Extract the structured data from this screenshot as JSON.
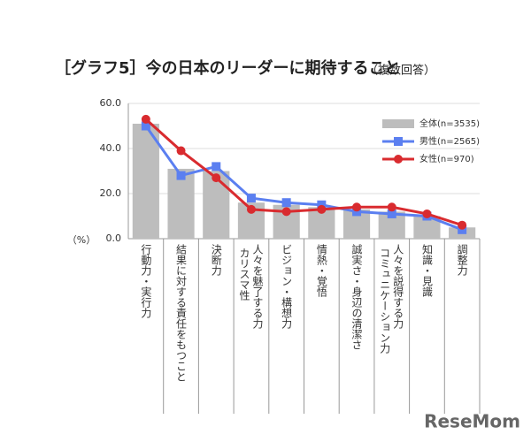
{
  "chart_data": {
    "type": "bar-line",
    "title": "［グラフ5］今の日本のリーダーに期待すること",
    "subtitle": "（複数回答）",
    "y_label": "（%）",
    "watermark": "ReseMom",
    "categories": [
      "行動力・実行力",
      "結果に対する責任をもつこと",
      "決断力",
      "人々を魅了する力 カリスマ性",
      "ビジョン・構想力",
      "情熱・覚悟",
      "誠実さ・身辺の清潔さ",
      "人々を説得する力 コミュニケーション力",
      "知識・見識",
      "調整力"
    ],
    "series": [
      {
        "name": "全体(n=3535)",
        "color": "#bdbdbd",
        "kind": "bar",
        "values": [
          51,
          31,
          30,
          16,
          15,
          14,
          13,
          12,
          10,
          5
        ]
      },
      {
        "name": "男性(n=2565)",
        "color": "#5b7ff0",
        "kind": "line",
        "marker": "square",
        "values": [
          50,
          28,
          32,
          18,
          16,
          15,
          12,
          11,
          10,
          4
        ]
      },
      {
        "name": "女性(n=970)",
        "color": "#d92b2f",
        "kind": "line",
        "marker": "circle",
        "values": [
          53,
          39,
          27,
          13,
          12,
          13,
          14,
          14,
          11,
          6
        ]
      }
    ],
    "ylim": [
      0,
      60
    ],
    "yticks": [
      {
        "value": 0,
        "label": "0.0"
      },
      {
        "value": 20,
        "label": "20.0"
      },
      {
        "value": 40,
        "label": "40.0"
      },
      {
        "value": 60,
        "label": "60.0"
      }
    ],
    "grid": true,
    "legend": "top-right"
  }
}
